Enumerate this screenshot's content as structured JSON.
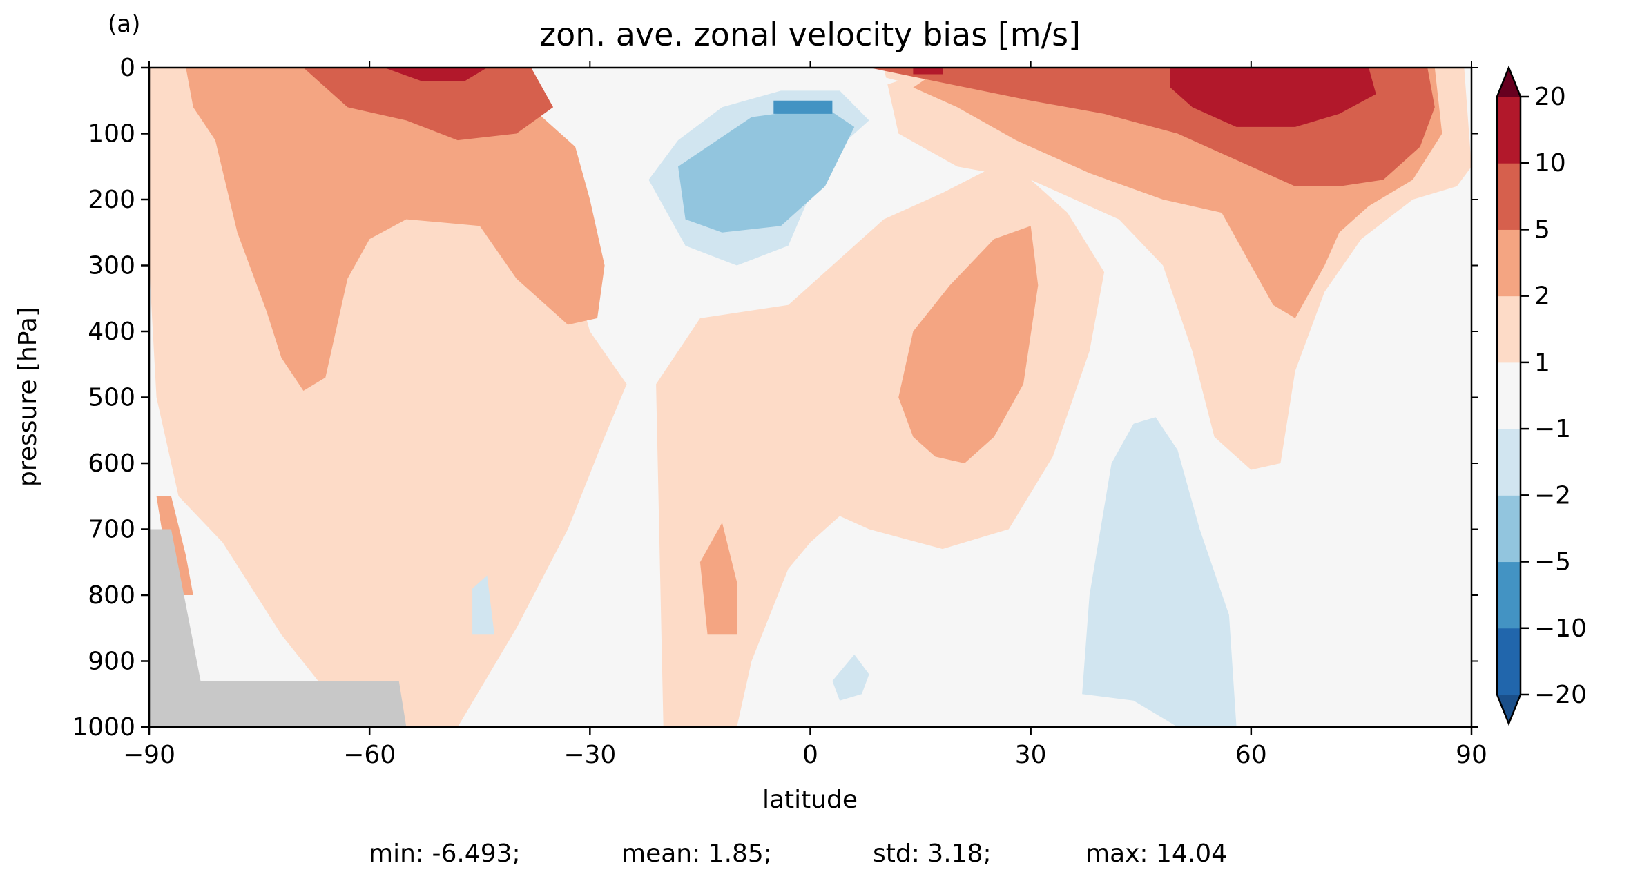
{
  "panel_label": "(a)",
  "chart_data": {
    "type": "filled-contour",
    "title": "zon. ave. zonal velocity bias [m/s]",
    "xlabel": "latitude",
    "ylabel": "pressure [hPa]",
    "xlim": [
      -90,
      90
    ],
    "ylim": [
      1000,
      0
    ],
    "x_ticks": [
      -90,
      -60,
      -30,
      0,
      30,
      60,
      90
    ],
    "x_tick_labels": [
      "−90",
      "−60",
      "−30",
      "0",
      "30",
      "60",
      "90"
    ],
    "y_ticks": [
      0,
      100,
      200,
      300,
      400,
      500,
      600,
      700,
      800,
      900,
      1000
    ],
    "y_tick_labels": [
      "0",
      "100",
      "200",
      "300",
      "400",
      "500",
      "600",
      "700",
      "800",
      "900",
      "1000"
    ],
    "colorbar": {
      "extend": "both",
      "levels": [
        -20,
        -10,
        -5,
        -2,
        -1,
        1,
        2,
        5,
        10,
        20
      ],
      "tick_labels": [
        "−20",
        "−10",
        "−5",
        "−2",
        "−1",
        "1",
        "2",
        "5",
        "10",
        "20"
      ],
      "colors": [
        "#1a4f8a",
        "#2166ac",
        "#4393c3",
        "#92c5de",
        "#d1e5f0",
        "#f6f6f6",
        "#fddbc7",
        "#f4a582",
        "#d6604d",
        "#b2182b",
        "#67001f"
      ]
    },
    "missing_color": "#c8c8c8",
    "regions": [
      {
        "level": 1,
        "color": "#fddbc7",
        "points": [
          [
            -90,
            0
          ],
          [
            -55,
            0
          ],
          [
            -37,
            120
          ],
          [
            -33,
            280
          ],
          [
            -30,
            400
          ],
          [
            -25,
            480
          ],
          [
            -28,
            560
          ],
          [
            -33,
            700
          ],
          [
            -40,
            850
          ],
          [
            -48,
            1000
          ],
          [
            -62,
            1000
          ],
          [
            -72,
            860
          ],
          [
            -80,
            720
          ],
          [
            -86,
            650
          ],
          [
            -89,
            500
          ],
          [
            -90,
            300
          ]
        ]
      },
      {
        "level": 1,
        "color": "#fddbc7",
        "points": [
          [
            -20,
            1000
          ],
          [
            -21,
            480
          ],
          [
            -15,
            380
          ],
          [
            -3,
            360
          ],
          [
            3,
            300
          ],
          [
            10,
            230
          ],
          [
            18,
            190
          ],
          [
            25,
            150
          ],
          [
            30,
            170
          ],
          [
            35,
            220
          ],
          [
            40,
            310
          ],
          [
            38,
            430
          ],
          [
            33,
            590
          ],
          [
            27,
            700
          ],
          [
            18,
            730
          ],
          [
            8,
            700
          ],
          [
            4,
            680
          ],
          [
            0,
            720
          ],
          [
            -3,
            760
          ],
          [
            -8,
            900
          ],
          [
            -10,
            1000
          ]
        ]
      },
      {
        "level": 1,
        "color": "#fddbc7",
        "points": [
          [
            10,
            0
          ],
          [
            60,
            0
          ],
          [
            80,
            0
          ],
          [
            89,
            0
          ],
          [
            90,
            150
          ],
          [
            88,
            180
          ],
          [
            82,
            200
          ],
          [
            75,
            260
          ],
          [
            70,
            340
          ],
          [
            66,
            460
          ],
          [
            64,
            600
          ],
          [
            60,
            610
          ],
          [
            55,
            560
          ],
          [
            52,
            430
          ],
          [
            48,
            300
          ],
          [
            42,
            230
          ],
          [
            30,
            170
          ],
          [
            20,
            150
          ],
          [
            12,
            100
          ]
        ]
      },
      {
        "level": 2,
        "color": "#f4a582",
        "points": [
          [
            -85,
            0
          ],
          [
            -58,
            0
          ],
          [
            -40,
            40
          ],
          [
            -32,
            120
          ],
          [
            -30,
            200
          ],
          [
            -28,
            300
          ],
          [
            -29,
            380
          ],
          [
            -33,
            390
          ],
          [
            -40,
            320
          ],
          [
            -45,
            240
          ],
          [
            -55,
            230
          ],
          [
            -60,
            260
          ],
          [
            -63,
            320
          ],
          [
            -66,
            470
          ],
          [
            -69,
            490
          ],
          [
            -72,
            440
          ],
          [
            -74,
            370
          ],
          [
            -78,
            250
          ],
          [
            -81,
            110
          ],
          [
            -84,
            60
          ]
        ]
      },
      {
        "level": 2,
        "color": "#f4a582",
        "points": [
          [
            12,
            500
          ],
          [
            14,
            400
          ],
          [
            19,
            330
          ],
          [
            25,
            260
          ],
          [
            30,
            240
          ],
          [
            31,
            330
          ],
          [
            29,
            480
          ],
          [
            25,
            560
          ],
          [
            21,
            600
          ],
          [
            17,
            590
          ],
          [
            14,
            560
          ]
        ]
      },
      {
        "level": 2,
        "color": "#f4a582",
        "points": [
          [
            -15,
            750
          ],
          [
            -12,
            690
          ],
          [
            -10,
            780
          ],
          [
            -10,
            860
          ],
          [
            -14,
            860
          ]
        ]
      },
      {
        "level": 2,
        "color": "#f4a582",
        "points": [
          [
            -89,
            650
          ],
          [
            -87,
            650
          ],
          [
            -85,
            740
          ],
          [
            -84,
            800
          ],
          [
            -86,
            800
          ],
          [
            -88,
            720
          ]
        ]
      },
      {
        "level": 2,
        "color": "#f4a582",
        "points": [
          [
            18,
            0
          ],
          [
            58,
            0
          ],
          [
            78,
            0
          ],
          [
            85,
            0
          ],
          [
            86,
            100
          ],
          [
            82,
            170
          ],
          [
            76,
            210
          ],
          [
            72,
            250
          ],
          [
            70,
            300
          ],
          [
            66,
            380
          ],
          [
            63,
            360
          ],
          [
            60,
            300
          ],
          [
            56,
            220
          ],
          [
            48,
            200
          ],
          [
            38,
            160
          ],
          [
            28,
            110
          ],
          [
            20,
            60
          ],
          [
            14,
            30
          ]
        ]
      },
      {
        "level": 5,
        "color": "#d6604d",
        "points": [
          [
            -69,
            0
          ],
          [
            -38,
            0
          ],
          [
            -35,
            60
          ],
          [
            -40,
            100
          ],
          [
            -48,
            110
          ],
          [
            -55,
            80
          ],
          [
            -63,
            60
          ]
        ]
      },
      {
        "level": 5,
        "color": "#d6604d",
        "points": [
          [
            8,
            0
          ],
          [
            84,
            0
          ],
          [
            85,
            60
          ],
          [
            83,
            120
          ],
          [
            78,
            170
          ],
          [
            72,
            180
          ],
          [
            66,
            180
          ],
          [
            60,
            150
          ],
          [
            50,
            100
          ],
          [
            40,
            70
          ],
          [
            30,
            50
          ]
        ]
      },
      {
        "level": 10,
        "color": "#b2182b",
        "points": [
          [
            -58,
            0
          ],
          [
            -44,
            0
          ],
          [
            -47,
            20
          ],
          [
            -53,
            20
          ]
        ]
      },
      {
        "level": 10,
        "color": "#b2182b",
        "points": [
          [
            49,
            0
          ],
          [
            76,
            0
          ],
          [
            77,
            40
          ],
          [
            72,
            70
          ],
          [
            66,
            90
          ],
          [
            58,
            90
          ],
          [
            52,
            60
          ],
          [
            49,
            30
          ]
        ]
      },
      {
        "level": 10,
        "color": "#b2182b",
        "points": [
          [
            14,
            0
          ],
          [
            18,
            0
          ],
          [
            18,
            10
          ],
          [
            14,
            10
          ]
        ]
      },
      {
        "level": -1,
        "color": "#f6f6f6",
        "points": [
          [
            -15,
            20
          ],
          [
            -5,
            0
          ],
          [
            5,
            0
          ],
          [
            12,
            20
          ],
          [
            5,
            45
          ],
          [
            -5,
            45
          ],
          [
            -12,
            40
          ]
        ]
      },
      {
        "level": -1,
        "color": "#d1e5f0",
        "points": [
          [
            -12,
            60
          ],
          [
            -4,
            35
          ],
          [
            4,
            35
          ],
          [
            8,
            80
          ],
          [
            2,
            140
          ],
          [
            -3,
            270
          ],
          [
            -10,
            300
          ],
          [
            -17,
            270
          ],
          [
            -22,
            170
          ],
          [
            -18,
            110
          ]
        ]
      },
      {
        "level": -1,
        "color": "#d1e5f0",
        "points": [
          [
            37,
            950
          ],
          [
            38,
            800
          ],
          [
            41,
            600
          ],
          [
            44,
            540
          ],
          [
            47,
            530
          ],
          [
            50,
            580
          ],
          [
            53,
            700
          ],
          [
            57,
            830
          ],
          [
            58,
            1000
          ],
          [
            50,
            1000
          ],
          [
            44,
            960
          ]
        ]
      },
      {
        "level": -1,
        "color": "#d1e5f0",
        "points": [
          [
            3,
            930
          ],
          [
            6,
            890
          ],
          [
            8,
            920
          ],
          [
            7,
            950
          ],
          [
            4,
            960
          ]
        ]
      },
      {
        "level": -1,
        "color": "#d1e5f0",
        "points": [
          [
            -46,
            790
          ],
          [
            -44,
            770
          ],
          [
            -43,
            860
          ],
          [
            -46,
            860
          ]
        ]
      },
      {
        "level": -2,
        "color": "#92c5de",
        "points": [
          [
            -18,
            150
          ],
          [
            -8,
            75
          ],
          [
            2,
            60
          ],
          [
            6,
            90
          ],
          [
            2,
            180
          ],
          [
            -4,
            240
          ],
          [
            -12,
            250
          ],
          [
            -17,
            230
          ]
        ]
      },
      {
        "level": -5,
        "color": "#4393c3",
        "points": [
          [
            -5,
            50
          ],
          [
            3,
            50
          ],
          [
            3,
            70
          ],
          [
            -5,
            70
          ]
        ]
      }
    ],
    "masked": [
      [
        -90,
        700
      ],
      [
        -87,
        700
      ],
      [
        -83,
        930
      ],
      [
        -56,
        930
      ],
      [
        -55,
        1000
      ],
      [
        -90,
        1000
      ]
    ],
    "stats": {
      "min": "min: -6.493;",
      "mean": "mean: 1.85;",
      "std": "std: 3.18;",
      "max": "max: 14.04"
    }
  }
}
